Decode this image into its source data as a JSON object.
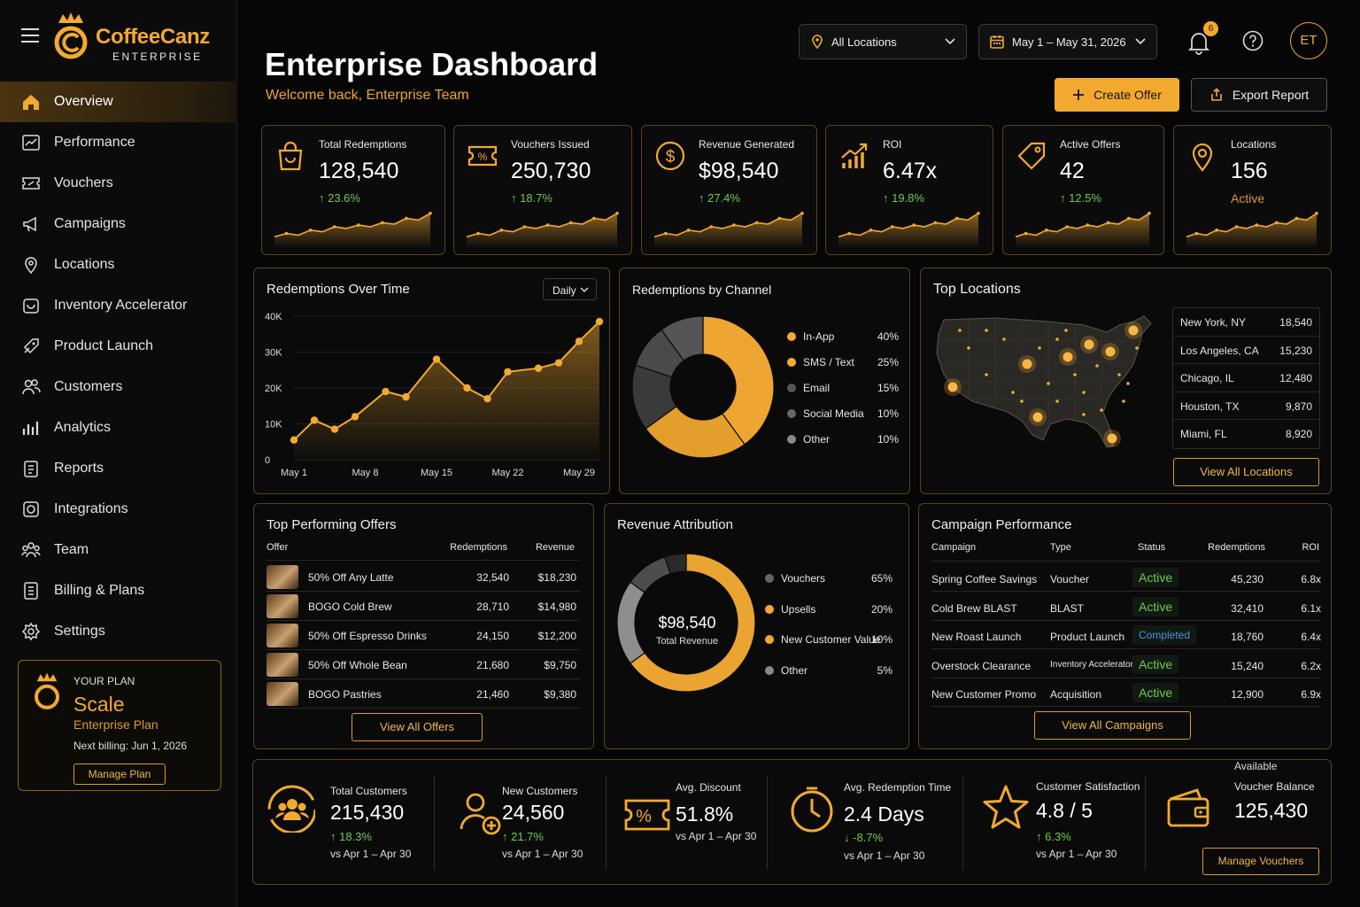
{
  "brand": {
    "name": "CoffeeCanz",
    "sub": "ENTERPRISE"
  },
  "nav": [
    {
      "label": "Overview",
      "icon": "home-icon",
      "active": true
    },
    {
      "label": "Performance",
      "icon": "performance-icon"
    },
    {
      "label": "Vouchers",
      "icon": "voucher-icon"
    },
    {
      "label": "Campaigns",
      "icon": "megaphone-icon"
    },
    {
      "label": "Locations",
      "icon": "pin-icon"
    },
    {
      "label": "Inventory Accelerator",
      "icon": "box-icon"
    },
    {
      "label": "Product Launch",
      "icon": "rocket-icon"
    },
    {
      "label": "Customers",
      "icon": "customers-icon"
    },
    {
      "label": "Analytics",
      "icon": "analytics-icon"
    },
    {
      "label": "Reports",
      "icon": "reports-icon"
    },
    {
      "label": "Integrations",
      "icon": "integrations-icon"
    },
    {
      "label": "Team",
      "icon": "team-icon"
    },
    {
      "label": "Billing & Plans",
      "icon": "billing-icon"
    },
    {
      "label": "Settings",
      "icon": "gear-icon"
    }
  ],
  "plan": {
    "caption": "YOUR PLAN",
    "name": "Scale",
    "sub": "Enterprise Plan",
    "billing": "Next billing: Jun 1, 2026",
    "button": "Manage Plan"
  },
  "header": {
    "title": "Enterprise Dashboard",
    "welcome": "Welcome back, Enterprise Team",
    "location_filter": "All Locations",
    "date_filter": "May 1 – May 31, 2026",
    "notifications": "6",
    "avatar": "ET",
    "create": "Create Offer",
    "export": "Export Report"
  },
  "kpis": [
    {
      "label": "Total Redemptions",
      "value": "128,540",
      "change": "↑ 23.6%",
      "icon": "bag-icon"
    },
    {
      "label": "Vouchers Issued",
      "value": "250,730",
      "change": "↑ 18.7%",
      "icon": "voucher-icon"
    },
    {
      "label": "Revenue Generated",
      "value": "$98,540",
      "change": "↑ 27.4%",
      "icon": "dollar-icon"
    },
    {
      "label": "ROI",
      "value": "6.47x",
      "change": "↑ 19.8%",
      "icon": "roi-chart-icon"
    },
    {
      "label": "Active Offers",
      "value": "42",
      "change": "↑ 12.5%",
      "icon": "tag-icon"
    },
    {
      "label": "Locations",
      "value": "156",
      "change": "Active",
      "icon": "pin-icon"
    }
  ],
  "chart_data": [
    {
      "type": "area",
      "title": "Redemptions Over Time",
      "granularity": "Daily",
      "x_labels": [
        "May 1",
        "May 8",
        "May 15",
        "May 22",
        "May 29"
      ],
      "y_ticks": [
        "0",
        "10K",
        "20K",
        "30K",
        "40K"
      ],
      "ylim": [
        0,
        40000
      ],
      "x": [
        1,
        3,
        5,
        7,
        10,
        12,
        15,
        18,
        20,
        22,
        25,
        27,
        29,
        31
      ],
      "values": [
        5500,
        11000,
        8500,
        12000,
        19000,
        17500,
        28000,
        20000,
        17000,
        24500,
        25500,
        27000,
        33000,
        38500
      ]
    },
    {
      "type": "pie",
      "title": "Redemptions by Channel",
      "labels": [
        "In-App",
        "SMS / Text",
        "Email",
        "Social Media",
        "Other"
      ],
      "values": [
        40,
        25,
        15,
        10,
        10
      ],
      "pct_labels": [
        "40%",
        "25%",
        "15%",
        "10%",
        "10%"
      ],
      "colors": [
        "#eea532",
        "#e49e2c",
        "#3a3a3a",
        "#4a4a4a",
        "#555555"
      ],
      "dot_colors": [
        "#f2a930",
        "#f2a930",
        "#555",
        "#666",
        "#888"
      ]
    },
    {
      "type": "pie",
      "title": "Revenue Attribution",
      "labels": [
        "Vouchers",
        "Upsells",
        "New Customer Value",
        "Other"
      ],
      "values": [
        65,
        20,
        10,
        5
      ],
      "pct_labels": [
        "65%",
        "20%",
        "10%",
        "5%"
      ],
      "colors": [
        "#eaa431",
        "#8e8e8e",
        "#4d4d4d",
        "#2a2a2a"
      ],
      "dot_colors": [
        "#666",
        "#f2a930",
        "#f2a930",
        "#888"
      ],
      "center_value": "$98,540",
      "center_label": "Total Revenue"
    }
  ],
  "top_locations": {
    "title": "Top Locations",
    "rows": [
      [
        "New York, NY",
        "18,540"
      ],
      [
        "Los Angeles, CA",
        "15,230"
      ],
      [
        "Chicago, IL",
        "12,480"
      ],
      [
        "Houston, TX",
        "9,870"
      ],
      [
        "Miami, FL",
        "8,920"
      ]
    ],
    "button": "View All Locations"
  },
  "offers": {
    "title": "Top Performing Offers",
    "headers": [
      "Offer",
      "Redemptions",
      "Revenue"
    ],
    "rows": [
      [
        "50% Off Any Latte",
        "32,540",
        "$18,230"
      ],
      [
        "BOGO Cold Brew",
        "28,710",
        "$14,980"
      ],
      [
        "50% Off Espresso Drinks",
        "24,150",
        "$12,200"
      ],
      [
        "50% Off Whole Bean",
        "21,680",
        "$9,750"
      ],
      [
        "BOGO Pastries",
        "21,460",
        "$9,380"
      ]
    ],
    "button": "View All Offers"
  },
  "campaigns": {
    "title": "Campaign Performance",
    "headers": [
      "Campaign",
      "Type",
      "Status",
      "Redemptions",
      "ROI"
    ],
    "rows": [
      [
        "Spring Coffee Savings",
        "Voucher",
        "Active",
        "45,230",
        "6.8x"
      ],
      [
        "Cold Brew BLAST",
        "BLAST",
        "Active",
        "32,410",
        "6.1x"
      ],
      [
        "New Roast Launch",
        "Product Launch",
        "Completed",
        "18,760",
        "6.4x"
      ],
      [
        "Overstock Clearance",
        "Inventory Accelerator",
        "Active",
        "15,240",
        "6.2x"
      ],
      [
        "New Customer Promo",
        "Acquisition",
        "Active",
        "12,900",
        "6.9x"
      ]
    ],
    "button": "View All Campaigns",
    "colors": {
      "active": "#6ecb4c",
      "completed": "#4f8fe0"
    }
  },
  "bottom": [
    {
      "label": "Total Customers",
      "value": "215,430",
      "change": "↑ 18.3%",
      "compare": "vs Apr 1 – Apr 30",
      "icon": "customers-circle-icon"
    },
    {
      "label": "New Customers",
      "value": "24,560",
      "change": "↑ 21.7%",
      "compare": "vs Apr 1 – Apr 30",
      "icon": "add-user-icon"
    },
    {
      "label": "Avg. Discount",
      "value": "51.8%",
      "change": "",
      "compare": "vs Apr 1 – Apr 30",
      "icon": "discount-icon"
    },
    {
      "label": "Avg. Redemption Time",
      "value": "2.4 Days",
      "change": "↓ -8.7%",
      "compare": "vs Apr 1 – Apr 30",
      "icon": "clock-icon"
    },
    {
      "label": "Customer Satisfaction",
      "value": "4.8 / 5",
      "change": "↑ 6.3%",
      "compare": "vs Apr 1 – Apr 30",
      "icon": "star-icon"
    },
    {
      "label": "Voucher Balance",
      "value": "125,430",
      "change": "",
      "compare": "Available",
      "icon": "wallet-icon",
      "button": "Manage Vouchers"
    }
  ],
  "accent": "#f2a930"
}
